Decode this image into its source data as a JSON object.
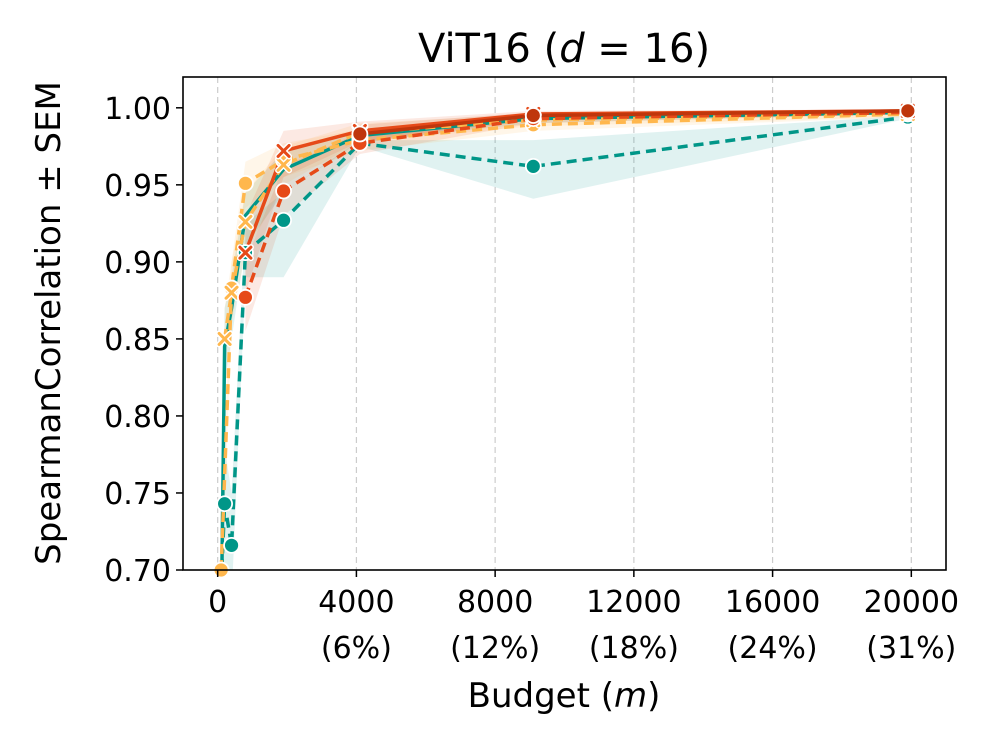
{
  "chart_data": {
    "type": "line",
    "title": "ViT16 (d = 16)",
    "title_parts": {
      "main": "ViT16 (",
      "italic": "d",
      "rest": " = 16)"
    },
    "xlabel": "Budget (m)",
    "xlabel_parts": {
      "main": "Budget (",
      "italic": "m",
      "rest": ")"
    },
    "ylabel": "SpearmanCorrelation ± SEM",
    "xlim": [
      -1000,
      21000
    ],
    "ylim": [
      0.7,
      1.02
    ],
    "grid": "vertical dashed",
    "x_ticks": [
      {
        "value": 0,
        "label": "0",
        "sub": ""
      },
      {
        "value": 4000,
        "label": "4000",
        "sub": "(6%)"
      },
      {
        "value": 8000,
        "label": "8000",
        "sub": "(12%)"
      },
      {
        "value": 12000,
        "label": "12000",
        "sub": "(18%)"
      },
      {
        "value": 16000,
        "label": "16000",
        "sub": "(24%)"
      },
      {
        "value": 20000,
        "label": "20000",
        "sub": "(31%)"
      }
    ],
    "y_ticks": [
      {
        "value": 0.7,
        "label": "0.70"
      },
      {
        "value": 0.75,
        "label": "0.75"
      },
      {
        "value": 0.8,
        "label": "0.80"
      },
      {
        "value": 0.85,
        "label": "0.85"
      },
      {
        "value": 0.9,
        "label": "0.90"
      },
      {
        "value": 0.95,
        "label": "0.95"
      },
      {
        "value": 1.0,
        "label": "1.00"
      }
    ],
    "series": [
      {
        "color": "#009688",
        "dash": true,
        "marker": "circle",
        "x": [
          100,
          200,
          400,
          800,
          1900,
          4100,
          9100,
          19900
        ],
        "y": [
          0.69,
          0.743,
          0.716,
          0.906,
          0.927,
          0.977,
          0.962,
          0.994
        ],
        "band_lo": [
          0.66,
          0.7,
          0.68,
          0.89,
          0.89,
          0.975,
          0.941,
          0.993
        ],
        "band_hi": [
          0.72,
          0.78,
          0.75,
          0.925,
          0.945,
          0.979,
          0.979,
          0.995
        ]
      },
      {
        "color": "#009688",
        "dash": false,
        "marker": "none",
        "x": [
          100,
          200,
          400,
          800,
          1900,
          4100,
          9100,
          19900
        ],
        "y": [
          0.66,
          0.845,
          0.87,
          0.93,
          0.96,
          0.982,
          0.993,
          0.997
        ],
        "band_lo": [
          0.63,
          0.82,
          0.85,
          0.91,
          0.945,
          0.978,
          0.99,
          0.996
        ],
        "band_hi": [
          0.69,
          0.87,
          0.89,
          0.945,
          0.972,
          0.986,
          0.996,
          0.998
        ]
      },
      {
        "color": "#FFB74D",
        "dash": true,
        "marker": "circle",
        "x": [
          100,
          400,
          800,
          1900,
          4100,
          9100,
          19900
        ],
        "y": [
          0.7,
          0.883,
          0.951,
          0.966,
          0.979,
          0.989,
          0.996
        ],
        "band_lo": [
          0.68,
          0.86,
          0.935,
          0.955,
          0.972,
          0.985,
          0.994
        ],
        "band_hi": [
          0.72,
          0.9,
          0.965,
          0.977,
          0.986,
          0.993,
          0.998
        ]
      },
      {
        "color": "#FFB74D",
        "dash": true,
        "marker": "x",
        "x": [
          200,
          400,
          800,
          1900,
          4100,
          9100,
          19900
        ],
        "y": [
          0.85,
          0.88,
          0.926,
          0.963,
          0.984,
          0.992,
          0.996
        ],
        "band_lo": [
          0.83,
          0.86,
          0.905,
          0.95,
          0.978,
          0.988,
          0.994
        ],
        "band_hi": [
          0.87,
          0.9,
          0.945,
          0.975,
          0.99,
          0.996,
          0.998
        ]
      },
      {
        "color": "#E64A19",
        "dash": true,
        "marker": "circle",
        "x": [
          800,
          1900,
          4100,
          9100,
          19900
        ],
        "y": [
          0.877,
          0.946,
          0.977,
          0.993,
          0.997
        ],
        "band_lo": [
          0.855,
          0.93,
          0.97,
          0.99,
          0.996
        ],
        "band_hi": [
          0.9,
          0.962,
          0.984,
          0.996,
          0.998
        ]
      },
      {
        "color": "#E64A19",
        "dash": false,
        "marker": "x",
        "x": [
          800,
          1900,
          4100,
          9100,
          19900
        ],
        "y": [
          0.906,
          0.972,
          0.985,
          0.996,
          0.998
        ],
        "band_lo": [
          0.88,
          0.955,
          0.978,
          0.993,
          0.997
        ],
        "band_hi": [
          0.93,
          0.985,
          0.991,
          0.998,
          0.999
        ]
      },
      {
        "color": "#BF360C",
        "dash": false,
        "marker": "circle",
        "x": [
          4100,
          9100,
          19900
        ],
        "y": [
          0.983,
          0.995,
          0.998
        ],
        "band_lo": [
          0.977,
          0.992,
          0.997
        ],
        "band_hi": [
          0.989,
          0.997,
          0.999
        ]
      }
    ]
  }
}
